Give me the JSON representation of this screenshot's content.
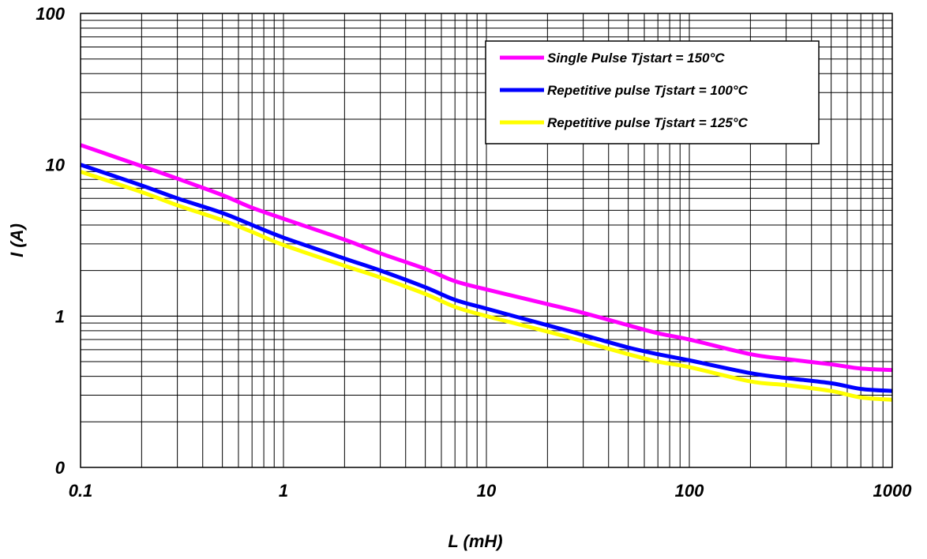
{
  "chart_data": {
    "type": "line",
    "xlabel": "L (mH)",
    "ylabel": "I (A)",
    "x_scale": "log",
    "xlim": [
      0.1,
      1000
    ],
    "x_ticks": [
      "0.1",
      "1",
      "10",
      "100",
      "1000"
    ],
    "y_tick_labels": [
      "0",
      "1",
      "10",
      "100"
    ],
    "grid": true,
    "legend_position": "top-right",
    "series": [
      {
        "name": "Single Pulse Tjstart = 150°C",
        "color": "#ff00ff",
        "x": [
          0.1,
          0.2,
          0.3,
          0.5,
          0.7,
          1,
          2,
          3,
          5,
          7,
          10,
          20,
          30,
          50,
          70,
          100,
          200,
          300,
          500,
          700,
          1000
        ],
        "y": [
          13.5,
          9.8,
          8.1,
          6.3,
          5.2,
          4.4,
          3.2,
          2.6,
          2.05,
          1.7,
          1.5,
          1.2,
          1.05,
          0.87,
          0.77,
          0.7,
          0.56,
          0.52,
          0.48,
          0.45,
          0.44
        ]
      },
      {
        "name": "Repetitive pulse Tjstart = 100°C",
        "color": "#0000ff",
        "x": [
          0.1,
          0.2,
          0.3,
          0.5,
          0.7,
          1,
          2,
          3,
          5,
          7,
          10,
          20,
          30,
          50,
          70,
          100,
          200,
          300,
          500,
          700,
          1000
        ],
        "y": [
          10,
          7.3,
          6,
          4.8,
          4,
          3.3,
          2.4,
          2.0,
          1.55,
          1.28,
          1.12,
          0.87,
          0.75,
          0.62,
          0.56,
          0.51,
          0.42,
          0.39,
          0.36,
          0.33,
          0.32
        ]
      },
      {
        "name": "Repetitive pulse Tjstart = 125°C",
        "color": "#ffff00",
        "x": [
          0.1,
          0.2,
          0.3,
          0.5,
          0.7,
          1,
          2,
          3,
          5,
          7,
          10,
          20,
          30,
          50,
          70,
          100,
          200,
          300,
          500,
          700,
          1000
        ],
        "y": [
          9.0,
          6.6,
          5.4,
          4.3,
          3.6,
          2.95,
          2.15,
          1.8,
          1.4,
          1.15,
          1.0,
          0.79,
          0.68,
          0.56,
          0.5,
          0.46,
          0.37,
          0.35,
          0.32,
          0.29,
          0.28
        ]
      }
    ]
  }
}
